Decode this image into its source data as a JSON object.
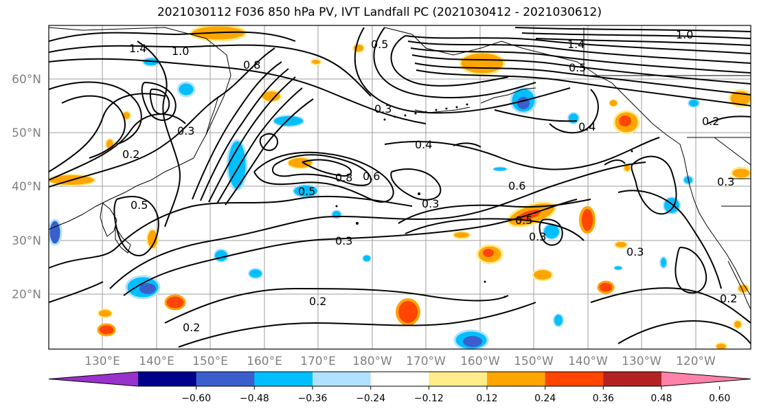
{
  "title": "2021030112 F036 850 hPa PV, IVT Landfall PC (2021030412 - 2021030612)",
  "lat_labels": [
    "60°N",
    "50°N",
    "40°N",
    "30°N",
    "20°N"
  ],
  "lon_labels": [
    "130°E",
    "140°E",
    "150°E",
    "160°E",
    "170°E",
    "180°W",
    "170°W",
    "160°W",
    "150°W",
    "140°W",
    "130°W",
    "120°W"
  ],
  "contour_labels": [
    "1.4",
    "1.0",
    "0.8",
    "0.5",
    "0.3",
    "0.2",
    "0.3",
    "0.4",
    "0.8",
    "0.6",
    "0.5",
    "0.3",
    "0.3",
    "0.2",
    "0.2",
    "0.6",
    "0.3",
    "0.5",
    "0.4",
    "1.4",
    "0.5",
    "1.0",
    "0.2",
    "0.3",
    "0.3",
    "0.5",
    "0.2"
  ],
  "colorbar": {
    "ticks": [
      "−0.60",
      "−0.48",
      "−0.36",
      "−0.24",
      "−0.12",
      "0.12",
      "0.24",
      "0.36",
      "0.48",
      "0.60"
    ],
    "colors": [
      "#9932cc",
      "#00008b",
      "#3a5fcd",
      "#00bfff",
      "#b0e2ff",
      "#ffffff",
      "#ffec8b",
      "#ffa500",
      "#ff4500",
      "#b22222",
      "#ff82ab"
    ]
  }
}
